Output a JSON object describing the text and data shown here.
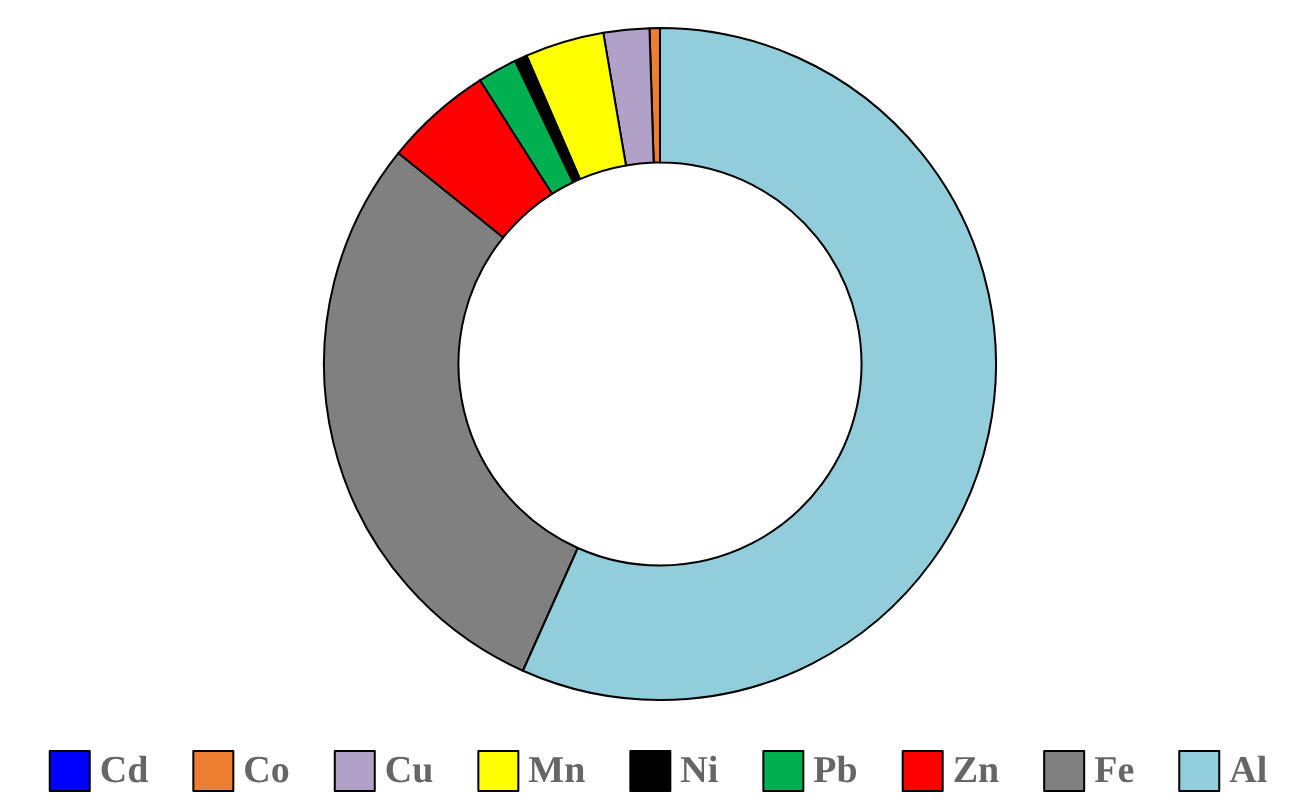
{
  "chart_data": {
    "type": "donut",
    "categories": [
      "Cd",
      "Co",
      "Cu",
      "Mn",
      "Ni",
      "Pb",
      "Zn",
      "Fe",
      "Al"
    ],
    "values": [
      null,
      0.5,
      2.2,
      3.8,
      0.6,
      1.9,
      5.2,
      29.1,
      56.67
    ],
    "colors": [
      "#0000ff",
      "#ed7d31",
      "#b1a0c7",
      "#ffff00",
      "#000000",
      "#00b050",
      "#ff0000",
      "#808080",
      "#92cddc"
    ],
    "legend": "bottom"
  }
}
